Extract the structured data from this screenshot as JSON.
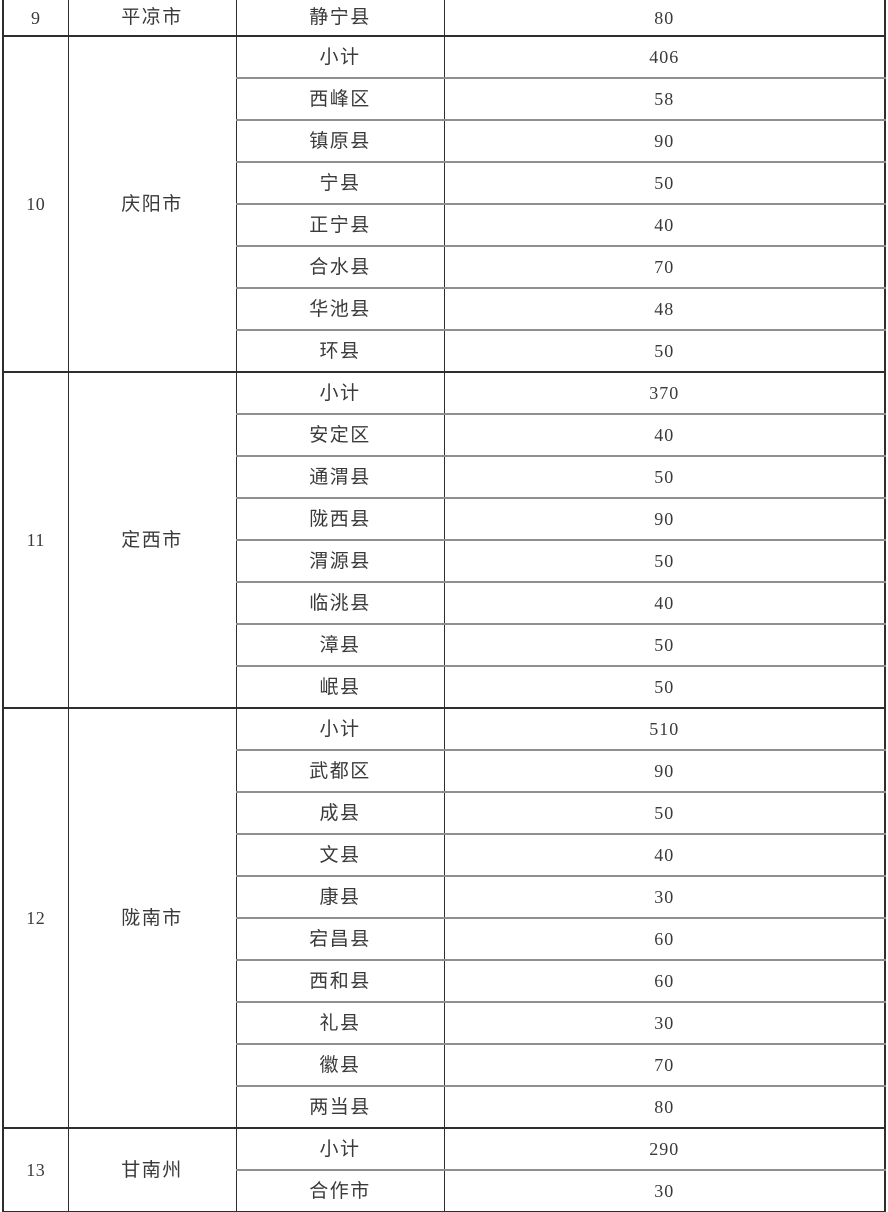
{
  "page": {
    "background": "#ffffff"
  },
  "table": {
    "colors": {
      "text": "#3a3a3a",
      "section_border": "#2e2e2e",
      "row_border": "#8f8f8f",
      "background": "#ffffff"
    },
    "sections": [
      {
        "index": "9",
        "city": "平凉市",
        "rows": [
          {
            "county": "静宁县",
            "value": "80"
          }
        ]
      },
      {
        "index": "10",
        "city": "庆阳市",
        "rows": [
          {
            "county": "小计",
            "value": "406"
          },
          {
            "county": "西峰区",
            "value": "58"
          },
          {
            "county": "镇原县",
            "value": "90"
          },
          {
            "county": "宁县",
            "value": "50"
          },
          {
            "county": "正宁县",
            "value": "40"
          },
          {
            "county": "合水县",
            "value": "70"
          },
          {
            "county": "华池县",
            "value": "48"
          },
          {
            "county": "环县",
            "value": "50"
          }
        ]
      },
      {
        "index": "11",
        "city": "定西市",
        "rows": [
          {
            "county": "小计",
            "value": "370"
          },
          {
            "county": "安定区",
            "value": "40"
          },
          {
            "county": "通渭县",
            "value": "50"
          },
          {
            "county": "陇西县",
            "value": "90"
          },
          {
            "county": "渭源县",
            "value": "50"
          },
          {
            "county": "临洮县",
            "value": "40"
          },
          {
            "county": "漳县",
            "value": "50"
          },
          {
            "county": "岷县",
            "value": "50"
          }
        ]
      },
      {
        "index": "12",
        "city": "陇南市",
        "rows": [
          {
            "county": "小计",
            "value": "510"
          },
          {
            "county": "武都区",
            "value": "90"
          },
          {
            "county": "成县",
            "value": "50"
          },
          {
            "county": "文县",
            "value": "40"
          },
          {
            "county": "康县",
            "value": "30"
          },
          {
            "county": "宕昌县",
            "value": "60"
          },
          {
            "county": "西和县",
            "value": "60"
          },
          {
            "county": "礼县",
            "value": "30"
          },
          {
            "county": "徽县",
            "value": "70"
          },
          {
            "county": "两当县",
            "value": "80"
          }
        ]
      },
      {
        "index": "13",
        "city": "甘南州",
        "rows": [
          {
            "county": "小计",
            "value": "290"
          },
          {
            "county": "合作市",
            "value": "30"
          }
        ]
      }
    ]
  }
}
